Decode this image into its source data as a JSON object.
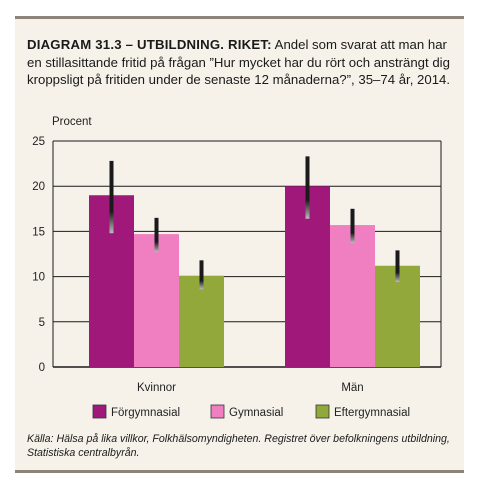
{
  "title_lead": "DIAGRAM 31.3 – UTBILDNING. RIKET:",
  "title_rest": " Andel som svarat att man har en stillasittande fritid på frågan ”Hur mycket har du rört och ansträngt dig kroppsligt på fritiden under de senaste 12 månaderna?”, 35–74 år, 2014.",
  "source": "Källa: Hälsa på lika villkor, Folkhälsomyndigheten. Registret över befolkningens utbildning, Statistiska centralbyrån.",
  "colors": {
    "Förgymnasial": "#a0197a",
    "Gymnasial": "#ef7fc0",
    "Eftergymnasial": "#92a83a",
    "errorbar": "#1a1a1a",
    "grid": "#1a1a1a"
  },
  "chart_data": {
    "type": "bar",
    "ylabel": "Procent",
    "xlabel": "",
    "ylim": [
      0,
      25
    ],
    "yticks": [
      0,
      5,
      10,
      15,
      20,
      25
    ],
    "grid": true,
    "legend_position": "bottom",
    "categories": [
      "Kvinnor",
      "Män"
    ],
    "series": [
      {
        "name": "Förgymnasial",
        "values": [
          19.0,
          20.0
        ],
        "ci_low": [
          14.8,
          16.4
        ],
        "ci_high": [
          22.8,
          23.3
        ]
      },
      {
        "name": "Gymnasial",
        "values": [
          14.7,
          15.7
        ],
        "ci_low": [
          12.7,
          13.7
        ],
        "ci_high": [
          16.5,
          17.5
        ]
      },
      {
        "name": "Eftergymnasial",
        "values": [
          10.1,
          11.2
        ],
        "ci_low": [
          8.6,
          9.4
        ],
        "ci_high": [
          11.8,
          12.9
        ]
      }
    ]
  }
}
